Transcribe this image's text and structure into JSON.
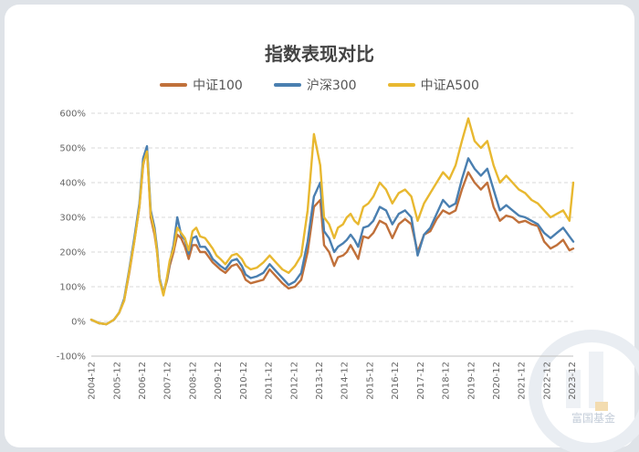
{
  "chart_data": {
    "type": "line",
    "title": "指数表现对比",
    "y_ticks": [
      "600%",
      "500%",
      "400%",
      "300%",
      "200%",
      "100%",
      "0%",
      "-100%"
    ],
    "ylim": [
      -100,
      600
    ],
    "grid": "horizontal dashed",
    "legend_position": "top-center",
    "x_ticks": [
      "2004-12",
      "2005-12",
      "2006-12",
      "2007-12",
      "2008-12",
      "2009-12",
      "2010-12",
      "2011-12",
      "2012-12",
      "2013-12",
      "2014-12",
      "2015-12",
      "2016-12",
      "2017-12",
      "2018-12",
      "2019-12",
      "2020-12",
      "2021-12",
      "2022-12",
      "2023-12"
    ],
    "x": [
      2004.9,
      2005.2,
      2005.5,
      2005.8,
      2006.0,
      2006.2,
      2006.4,
      2006.6,
      2006.8,
      2006.95,
      2007.1,
      2007.25,
      2007.4,
      2007.5,
      2007.6,
      2007.75,
      2007.9,
      2008.0,
      2008.15,
      2008.3,
      2008.45,
      2008.6,
      2008.75,
      2008.9,
      2009.05,
      2009.2,
      2009.4,
      2009.55,
      2009.7,
      2009.85,
      2010.0,
      2010.2,
      2010.45,
      2010.65,
      2010.85,
      2011.0,
      2011.2,
      2011.45,
      2011.7,
      2011.95,
      2012.2,
      2012.45,
      2012.7,
      2012.95,
      2013.2,
      2013.45,
      2013.7,
      2013.95,
      2014.1,
      2014.3,
      2014.5,
      2014.65,
      2014.85,
      2015.0,
      2015.15,
      2015.3,
      2015.45,
      2015.65,
      2015.85,
      2016.05,
      2016.3,
      2016.55,
      2016.8,
      2017.05,
      2017.3,
      2017.55,
      2017.8,
      2018.05,
      2018.3,
      2018.55,
      2018.8,
      2019.05,
      2019.3,
      2019.55,
      2019.8,
      2020.05,
      2020.3,
      2020.55,
      2020.8,
      2021.05,
      2021.3,
      2021.55,
      2021.8,
      2022.05,
      2022.3,
      2022.55,
      2022.8,
      2023.05,
      2023.3,
      2023.55,
      2023.8,
      2023.95
    ],
    "series": [
      {
        "name": "中证100",
        "color": "#c0703a",
        "values": [
          5,
          -5,
          -8,
          5,
          25,
          60,
          140,
          230,
          330,
          450,
          500,
          300,
          250,
          200,
          120,
          80,
          120,
          160,
          200,
          250,
          240,
          215,
          180,
          220,
          220,
          200,
          200,
          185,
          170,
          160,
          150,
          140,
          160,
          165,
          145,
          120,
          110,
          115,
          120,
          150,
          130,
          110,
          95,
          100,
          120,
          200,
          330,
          350,
          220,
          200,
          160,
          185,
          190,
          200,
          220,
          200,
          180,
          245,
          240,
          255,
          290,
          280,
          240,
          280,
          295,
          280,
          200,
          250,
          260,
          295,
          320,
          310,
          320,
          380,
          430,
          400,
          380,
          400,
          330,
          290,
          305,
          300,
          285,
          290,
          280,
          275,
          230,
          210,
          220,
          235,
          205,
          210
        ]
      },
      {
        "name": "沪深300",
        "color": "#4a7fb0",
        "values": [
          5,
          -5,
          -8,
          5,
          25,
          65,
          150,
          240,
          340,
          470,
          505,
          320,
          270,
          210,
          125,
          80,
          125,
          170,
          220,
          300,
          250,
          235,
          195,
          240,
          245,
          215,
          215,
          200,
          180,
          170,
          160,
          150,
          175,
          180,
          160,
          135,
          125,
          130,
          140,
          165,
          145,
          125,
          105,
          115,
          140,
          230,
          360,
          400,
          260,
          240,
          200,
          215,
          225,
          235,
          250,
          235,
          215,
          270,
          275,
          290,
          330,
          320,
          280,
          310,
          320,
          300,
          190,
          250,
          270,
          310,
          350,
          330,
          340,
          410,
          470,
          440,
          420,
          440,
          380,
          320,
          335,
          320,
          305,
          300,
          290,
          280,
          255,
          240,
          255,
          270,
          245,
          230
        ]
      },
      {
        "name": "中证A500",
        "color": "#e8b830",
        "values": [
          5,
          -5,
          -8,
          5,
          25,
          60,
          145,
          230,
          330,
          455,
          490,
          310,
          260,
          200,
          120,
          75,
          130,
          175,
          210,
          270,
          255,
          240,
          205,
          260,
          270,
          245,
          240,
          225,
          210,
          190,
          180,
          165,
          190,
          195,
          180,
          160,
          150,
          155,
          170,
          190,
          170,
          150,
          140,
          160,
          190,
          320,
          540,
          450,
          300,
          280,
          240,
          270,
          280,
          300,
          310,
          290,
          280,
          330,
          340,
          360,
          400,
          380,
          340,
          370,
          380,
          360,
          290,
          340,
          370,
          400,
          430,
          410,
          450,
          520,
          585,
          520,
          500,
          520,
          450,
          400,
          420,
          400,
          380,
          370,
          350,
          340,
          320,
          300,
          310,
          320,
          290,
          400
        ]
      }
    ]
  },
  "watermark": {
    "text": "富国基金"
  }
}
